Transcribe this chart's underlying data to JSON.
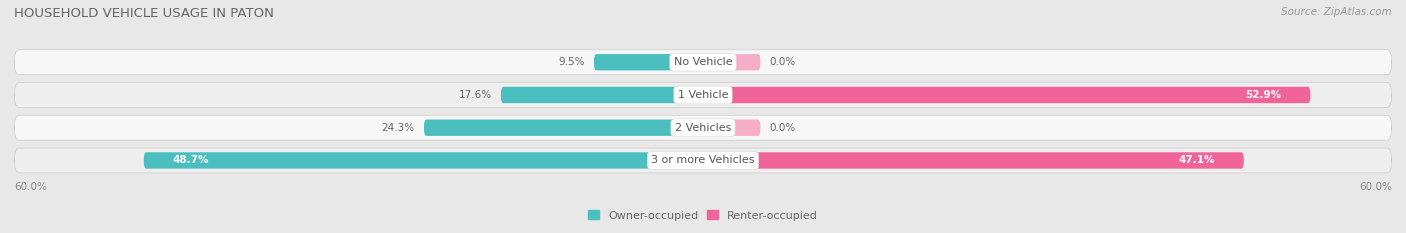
{
  "title": "HOUSEHOLD VEHICLE USAGE IN PATON",
  "source": "Source: ZipAtlas.com",
  "categories": [
    "No Vehicle",
    "1 Vehicle",
    "2 Vehicles",
    "3 or more Vehicles"
  ],
  "owner_values": [
    9.5,
    17.6,
    24.3,
    48.7
  ],
  "renter_values": [
    0.0,
    52.9,
    0.0,
    47.1
  ],
  "renter_stub_values": [
    5.0,
    0,
    5.0,
    0
  ],
  "owner_color": "#4bbfbf",
  "renter_color_full": "#f0649a",
  "renter_color_stub": "#f5adc8",
  "axis_max": 60.0,
  "bg_color": "#e8e8e8",
  "row_bg_light": "#f7f7f7",
  "row_bg_dark": "#eeeeee",
  "title_color": "#666666",
  "source_color": "#999999",
  "value_color_outside": "#666666",
  "value_color_inside": "#ffffff",
  "label_color": "#555555",
  "legend_axis_label": "60.0%"
}
